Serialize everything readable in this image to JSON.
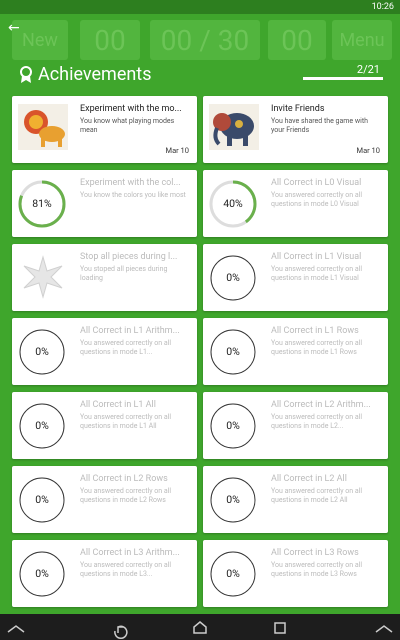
{
  "status_bar": {
    "time": "10:26"
  },
  "game_bar": {
    "new": "New",
    "score_left": "00",
    "counter": "00 / 30",
    "score_right": "00",
    "menu": "Menu"
  },
  "header": {
    "title": "Achievements",
    "count": "2/21"
  },
  "achievements": [
    {
      "title": "Experiment with the mo...",
      "description": "You know what playing modes mean",
      "date": "Mar 10",
      "icon": "lion"
    },
    {
      "title": "Invite Friends",
      "description": "You have shared the game with your Friends",
      "date": "Mar 10",
      "icon": "elephant"
    },
    {
      "title": "Experiment with the col...",
      "description": "You know the colors you like most",
      "progress": "81%"
    },
    {
      "title": "All Correct in L0 Visual",
      "description": "You answered correctly on all questions in mode L0 Visual",
      "progress": "40%"
    },
    {
      "title": "Stop all pieces during l...",
      "description": "You stoped all pieces during loading",
      "icon": "star"
    },
    {
      "title": "All Correct in L1 Visual",
      "description": "You answered correctly on all questions in mode L1 Visual",
      "progress": "0%"
    },
    {
      "title": "All Correct in L1 Arithm...",
      "description": "You answered correctly on all questions in mode L1...",
      "progress": "0%"
    },
    {
      "title": "All Correct in L1 Rows",
      "description": "You answered correctly on all questions in mode L1 Rows",
      "progress": "0%"
    },
    {
      "title": "All Correct in L1 All",
      "description": "You answered correctly on all questions in mode L1 All",
      "progress": "0%"
    },
    {
      "title": "All Correct in L2 Arithm...",
      "description": "You answered correctly on all questions in mode L2...",
      "progress": "0%"
    },
    {
      "title": "All Correct in L2 Rows",
      "description": "You answered correctly on all questions in mode L2 Rows",
      "progress": "0%"
    },
    {
      "title": "All Correct in L2 All",
      "description": "You answered correctly on all questions in mode L2 All",
      "progress": "0%"
    },
    {
      "title": "All Correct in L3 Arithm...",
      "description": "You answered correctly on all questions in mode L3...",
      "progress": "0%"
    },
    {
      "title": "All Correct in L3 Rows",
      "description": "You answered correctly on all questions in mode L3 Rows",
      "progress": "0%"
    }
  ]
}
